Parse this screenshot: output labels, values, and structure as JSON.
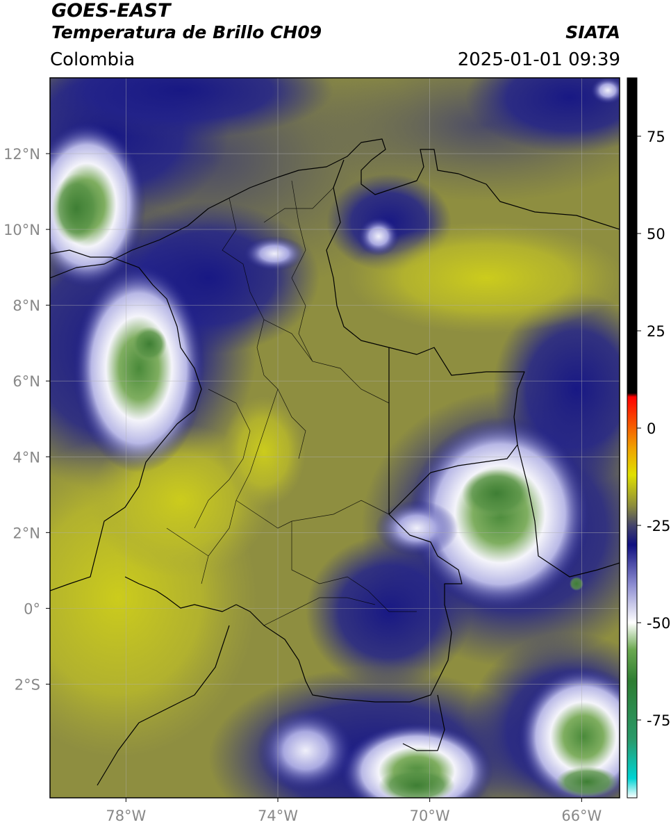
{
  "header": {
    "satellite": "GOES-EAST",
    "product": "Temperatura de Brillo CH09",
    "region": "Colombia",
    "source": "SIATA",
    "datetime": "2025-01-01 09:39"
  },
  "map": {
    "lon_range": [
      -80,
      -65
    ],
    "lat_range": [
      -5,
      14
    ],
    "lat_ticks": [
      {
        "value": 12,
        "label": "12°N"
      },
      {
        "value": 10,
        "label": "10°N"
      },
      {
        "value": 8,
        "label": "8°N"
      },
      {
        "value": 6,
        "label": "6°N"
      },
      {
        "value": 4,
        "label": "4°N"
      },
      {
        "value": 2,
        "label": "2°N"
      },
      {
        "value": 0,
        "label": "0°"
      },
      {
        "value": -2,
        "label": "2°S"
      }
    ],
    "lon_ticks": [
      {
        "value": -78,
        "label": "78°W"
      },
      {
        "value": -74,
        "label": "74°W"
      },
      {
        "value": -70,
        "label": "70°W"
      },
      {
        "value": -66,
        "label": "66°W"
      }
    ],
    "grid": true
  },
  "colorbar": {
    "range": [
      -95,
      90
    ],
    "ticks": [
      {
        "value": 75,
        "label": "75"
      },
      {
        "value": 50,
        "label": "50"
      },
      {
        "value": 25,
        "label": "25"
      },
      {
        "value": 0,
        "label": "0"
      },
      {
        "value": -25,
        "label": "-25"
      },
      {
        "value": -50,
        "label": "-50"
      },
      {
        "value": -75,
        "label": "-75"
      }
    ],
    "stops": [
      {
        "value": -95,
        "color": "#ffffff"
      },
      {
        "value": -90,
        "color": "#00d4d4"
      },
      {
        "value": -80,
        "color": "#2a9a6a"
      },
      {
        "value": -65,
        "color": "#2e7d32"
      },
      {
        "value": -57,
        "color": "#6aa84f"
      },
      {
        "value": -50,
        "color": "#ffffff"
      },
      {
        "value": -40,
        "color": "#8a8ad0"
      },
      {
        "value": -30,
        "color": "#101080"
      },
      {
        "value": -25,
        "color": "#44446a"
      },
      {
        "value": -20,
        "color": "#8c8c3c"
      },
      {
        "value": -12,
        "color": "#e0e000"
      },
      {
        "value": -5,
        "color": "#f0a000"
      },
      {
        "value": 8,
        "color": "#ff0000"
      },
      {
        "value": 9,
        "color": "#000000"
      },
      {
        "value": 90,
        "color": "#000000"
      }
    ]
  },
  "colors": {
    "background_olive": "#9e9e3a",
    "deep_blue": "#1a1a82",
    "cloud_white": "#f2f2f8",
    "cold_green": "#4e8a40",
    "warm_yellow": "#c8c81e"
  }
}
